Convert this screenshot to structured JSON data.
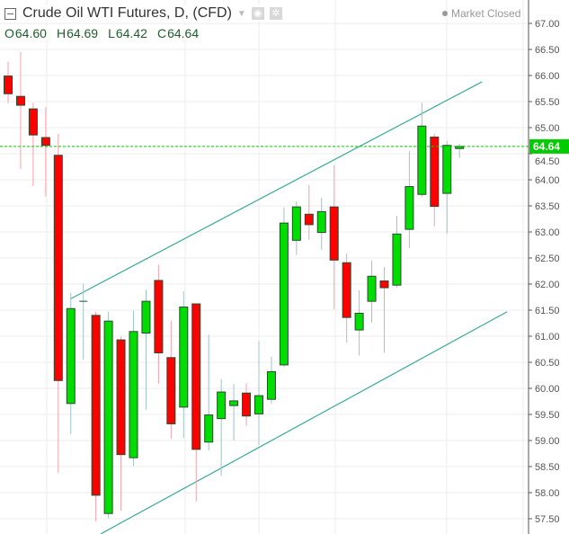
{
  "header": {
    "title": "Crude Oil WTI Futures, D, (CFD)",
    "status": "Market Closed",
    "ohlc": {
      "o_label": "O",
      "o": "64.60",
      "h_label": "H",
      "h": "64.69",
      "l_label": "L",
      "l": "64.42",
      "c_label": "C",
      "c": "64.64"
    }
  },
  "colors": {
    "up": "#00dd00",
    "down": "#ff0000",
    "border": "#2a4a30",
    "up_wick": "#9ec5c8",
    "down_wick": "#f3a3ab",
    "trendline": "#3aab96",
    "price_line": "#00cc00",
    "grid": "#eeeeee"
  },
  "chart_data": {
    "type": "candlestick",
    "ylim": [
      57.3,
      67.4
    ],
    "y_ticks": [
      "57.50",
      "58.00",
      "58.50",
      "59.00",
      "59.50",
      "60.00",
      "60.50",
      "61.00",
      "61.50",
      "62.00",
      "62.50",
      "63.00",
      "63.50",
      "64.00",
      "64.50",
      "65.00",
      "65.50",
      "66.00",
      "66.50",
      "67.00"
    ],
    "grid": true,
    "last_price": "64.64",
    "ohlc": [
      [
        65.99,
        66.27,
        65.47,
        65.65
      ],
      [
        65.6,
        66.45,
        64.21,
        65.43
      ],
      [
        65.36,
        65.48,
        63.88,
        64.86
      ],
      [
        64.81,
        65.39,
        63.68,
        64.66
      ],
      [
        64.47,
        64.88,
        58.38,
        60.15
      ],
      [
        59.71,
        61.83,
        59.12,
        61.53
      ],
      [
        61.67,
        62.01,
        60.55,
        61.67
      ],
      [
        61.4,
        61.47,
        57.45,
        57.95
      ],
      [
        57.6,
        61.47,
        57.51,
        61.29
      ],
      [
        60.93,
        60.99,
        57.65,
        58.73
      ],
      [
        58.67,
        61.49,
        58.51,
        61.09
      ],
      [
        61.06,
        61.89,
        59.59,
        61.67
      ],
      [
        62.07,
        62.37,
        60.09,
        60.68
      ],
      [
        60.59,
        61.3,
        59.03,
        59.32
      ],
      [
        59.64,
        61.86,
        59.05,
        61.56
      ],
      [
        61.62,
        61.62,
        57.83,
        58.83
      ],
      [
        58.97,
        61.03,
        58.81,
        59.49
      ],
      [
        59.42,
        60.18,
        58.32,
        59.93
      ],
      [
        59.67,
        60.08,
        59.0,
        59.76
      ],
      [
        59.91,
        60.1,
        59.28,
        59.47
      ],
      [
        59.51,
        60.91,
        58.91,
        59.86
      ],
      [
        59.79,
        60.61,
        59.7,
        60.32
      ],
      [
        60.45,
        63.47,
        60.41,
        63.17
      ],
      [
        62.84,
        63.59,
        62.56,
        63.48
      ],
      [
        63.34,
        63.9,
        62.85,
        63.14
      ],
      [
        62.99,
        63.66,
        62.66,
        63.39
      ],
      [
        63.48,
        64.28,
        61.52,
        62.46
      ],
      [
        62.41,
        62.59,
        60.88,
        61.36
      ],
      [
        61.12,
        61.88,
        60.63,
        61.44
      ],
      [
        61.67,
        62.45,
        61.26,
        62.15
      ],
      [
        62.06,
        62.33,
        60.68,
        61.93
      ],
      [
        61.98,
        63.31,
        61.93,
        62.96
      ],
      [
        63.05,
        64.55,
        62.69,
        63.87
      ],
      [
        63.72,
        65.48,
        63.67,
        65.03
      ],
      [
        64.82,
        64.88,
        63.11,
        63.49
      ],
      [
        63.74,
        64.74,
        62.97,
        64.66
      ],
      [
        64.6,
        64.69,
        64.42,
        64.64
      ]
    ],
    "trendlines": [
      {
        "from": [
          5,
          61.72
        ],
        "to": [
          37.8,
          65.88
        ]
      },
      {
        "from": [
          7.4,
          57.21
        ],
        "to": [
          39.8,
          61.47
        ]
      }
    ]
  }
}
